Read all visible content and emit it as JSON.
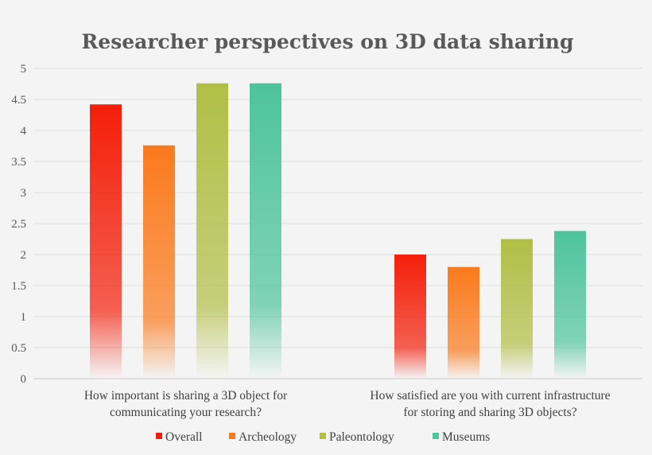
{
  "chart_data": {
    "type": "bar",
    "title": "Researcher perspectives on 3D data sharing",
    "xlabel": "",
    "ylabel": "",
    "ylim": [
      0,
      5
    ],
    "yticks": [
      "0",
      "0.5",
      "1",
      "1.5",
      "2",
      "2.5",
      "3",
      "3.5",
      "4",
      "4.5",
      "5"
    ],
    "grid": true,
    "legend_position": "bottom",
    "categories": [
      [
        "How important is sharing a 3D object for",
        "communicating your research?"
      ],
      [
        "How satisfied are you with current infrastructure",
        "for storing and sharing 3D objects?"
      ]
    ],
    "series": [
      {
        "name": "Overall",
        "color": "#f41f0a",
        "values": [
          4.42,
          2.0
        ]
      },
      {
        "name": "Archeology",
        "color": "#fb7a1c",
        "values": [
          3.76,
          1.8
        ]
      },
      {
        "name": "Paleontology",
        "color": "#b0bf45",
        "values": [
          4.76,
          2.25
        ]
      },
      {
        "name": "Museums",
        "color": "#4ec49c",
        "values": [
          4.76,
          2.38
        ]
      }
    ]
  }
}
